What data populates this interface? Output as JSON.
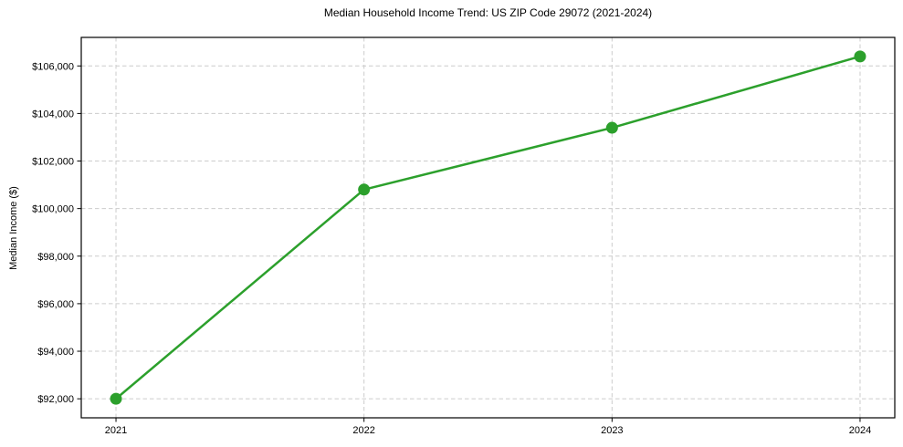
{
  "chart_data": {
    "type": "line",
    "title": "Median Household Income Trend: US ZIP Code 29072 (2021-2024)",
    "xlabel": "",
    "ylabel": "Median Income ($)",
    "x": [
      2021,
      2022,
      2023,
      2024
    ],
    "x_labels": [
      "2021",
      "2022",
      "2023",
      "2024"
    ],
    "series": [
      {
        "name": "Median Household Income",
        "values": [
          92000,
          100800,
          103400,
          106400
        ]
      }
    ],
    "ytick_values": [
      92000,
      94000,
      96000,
      98000,
      100000,
      102000,
      104000,
      106000
    ],
    "ytick_labels": [
      "$92,000",
      "$94,000",
      "$96,000",
      "$98,000",
      "$100,000",
      "$102,000",
      "$104,000",
      "$106,000"
    ],
    "xlim": [
      2020.86,
      2024.14
    ],
    "ylim": [
      91200,
      107200
    ],
    "grid": "dashed, both axes",
    "legend": "none",
    "line_color": "#2ca02c",
    "grid_color": "#cccccc",
    "spine_color": "#000000",
    "line_width": 2.5,
    "marker": "circle",
    "marker_radius": 6.5
  }
}
